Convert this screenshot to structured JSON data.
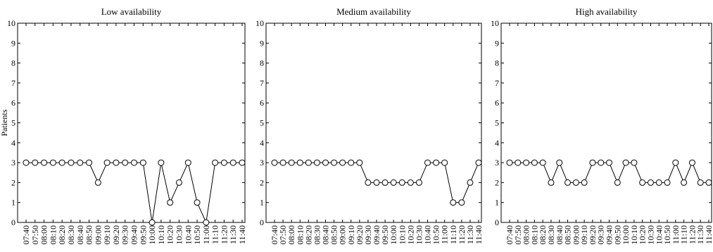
{
  "chart_data": [
    {
      "type": "line",
      "title": "Low availability",
      "ylabel": "Patients",
      "categories": [
        "07:40",
        "07:50",
        "08:00",
        "08:10",
        "08:20",
        "08:30",
        "08:40",
        "08:50",
        "09:00",
        "09:10",
        "09:20",
        "09:30",
        "09:40",
        "09:50",
        "10:00",
        "10:10",
        "10:20",
        "10:30",
        "10:40",
        "10:50",
        "11:00",
        "11:10",
        "11:20",
        "11:30",
        "11:40"
      ],
      "series": [
        {
          "color": "#000000",
          "values": [
            3,
            3,
            3,
            3,
            3,
            3,
            3,
            3,
            2,
            3,
            3,
            3,
            3,
            3,
            0,
            3,
            1,
            2,
            3,
            1,
            0,
            3,
            3,
            3,
            3
          ]
        }
      ],
      "ylim": [
        0,
        10
      ],
      "yticks": [
        0,
        1,
        2,
        3,
        4,
        5,
        6,
        7,
        8,
        9,
        10
      ]
    },
    {
      "type": "line",
      "title": "Medium availability",
      "categories": [
        "07:40",
        "07:50",
        "08:00",
        "08:10",
        "08:20",
        "08:30",
        "08:40",
        "08:50",
        "09:00",
        "09:10",
        "09:20",
        "09:30",
        "09:40",
        "09:50",
        "10:00",
        "10:10",
        "10:20",
        "10:30",
        "10:40",
        "10:50",
        "11:00",
        "11:10",
        "11:20",
        "11:30",
        "11:40"
      ],
      "series": [
        {
          "color": "#000000",
          "values": [
            3,
            3,
            3,
            3,
            3,
            3,
            3,
            3,
            3,
            3,
            3,
            2,
            2,
            2,
            2,
            2,
            2,
            2,
            3,
            3,
            3,
            1,
            1,
            2,
            3
          ]
        }
      ],
      "ylim": [
        0,
        10
      ],
      "yticks": [
        0,
        1,
        2,
        3,
        4,
        5,
        6,
        7,
        8,
        9,
        10
      ]
    },
    {
      "type": "line",
      "title": "High availability",
      "categories": [
        "07:40",
        "07:50",
        "08:00",
        "08:10",
        "08:20",
        "08:30",
        "08:40",
        "08:50",
        "09:00",
        "09:10",
        "09:20",
        "09:30",
        "09:40",
        "09:50",
        "10:00",
        "10:10",
        "10:20",
        "10:30",
        "10:40",
        "10:50",
        "11:00",
        "11:10",
        "11:20",
        "11:30",
        "11:40"
      ],
      "series": [
        {
          "color": "#000000",
          "values": [
            3,
            3,
            3,
            3,
            3,
            2,
            3,
            2,
            2,
            2,
            3,
            3,
            3,
            2,
            3,
            3,
            2,
            2,
            2,
            2,
            3,
            2,
            3,
            2,
            2
          ]
        }
      ],
      "ylim": [
        0,
        10
      ],
      "yticks": [
        0,
        1,
        2,
        3,
        4,
        5,
        6,
        7,
        8,
        9,
        10
      ]
    }
  ]
}
